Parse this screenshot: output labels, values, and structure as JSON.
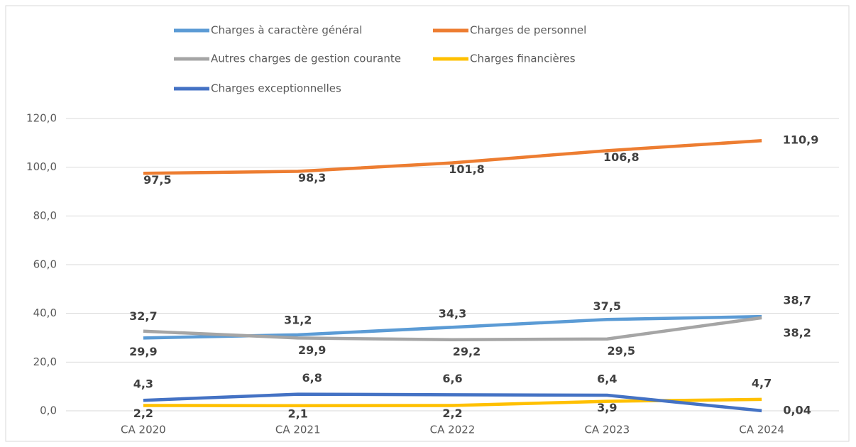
{
  "chart_data": {
    "type": "line",
    "categories": [
      "CA 2020",
      "CA 2021",
      "CA 2022",
      "CA 2023",
      "CA 2024"
    ],
    "series": [
      {
        "name": "Charges à caractère général",
        "color": "#5b9bd5",
        "values": [
          29.9,
          31.2,
          34.3,
          37.5,
          38.7
        ],
        "value_labels": [
          "29,9",
          "31,2",
          "34,3",
          "37,5",
          "38,7"
        ]
      },
      {
        "name": "Charges de personnel",
        "color": "#ed7d31",
        "values": [
          97.5,
          98.3,
          101.8,
          106.8,
          110.9
        ],
        "value_labels": [
          "97,5",
          "98,3",
          "101,8",
          "106,8",
          "110,9"
        ]
      },
      {
        "name": "Autres charges de gestion courante",
        "color": "#a5a5a5",
        "values": [
          32.7,
          29.9,
          29.2,
          29.5,
          38.2
        ],
        "value_labels": [
          "32,7",
          "29,9",
          "29,2",
          "29,5",
          "38,2"
        ]
      },
      {
        "name": "Charges financières",
        "color": "#ffc000",
        "values": [
          2.2,
          2.1,
          2.2,
          3.9,
          4.7
        ],
        "value_labels": [
          "2,2",
          "2,1",
          "2,2",
          "3,9",
          "4,7"
        ]
      },
      {
        "name": "Charges exceptionnelles",
        "color": "#4472c4",
        "values": [
          4.3,
          6.8,
          6.6,
          6.4,
          0.04
        ],
        "value_labels": [
          "4,3",
          "6,8",
          "6,6",
          "6,4",
          "0,04"
        ]
      }
    ],
    "ylim": [
      0,
      120
    ],
    "yticks": [
      {
        "value": 0,
        "label": "0,0"
      },
      {
        "value": 20,
        "label": "20,0"
      },
      {
        "value": 40,
        "label": "40,0"
      },
      {
        "value": 60,
        "label": "60,0"
      },
      {
        "value": 80,
        "label": "80,0"
      },
      {
        "value": 100,
        "label": "100,0"
      },
      {
        "value": 120,
        "label": "120,0"
      }
    ],
    "grid": true,
    "legend": "top"
  }
}
